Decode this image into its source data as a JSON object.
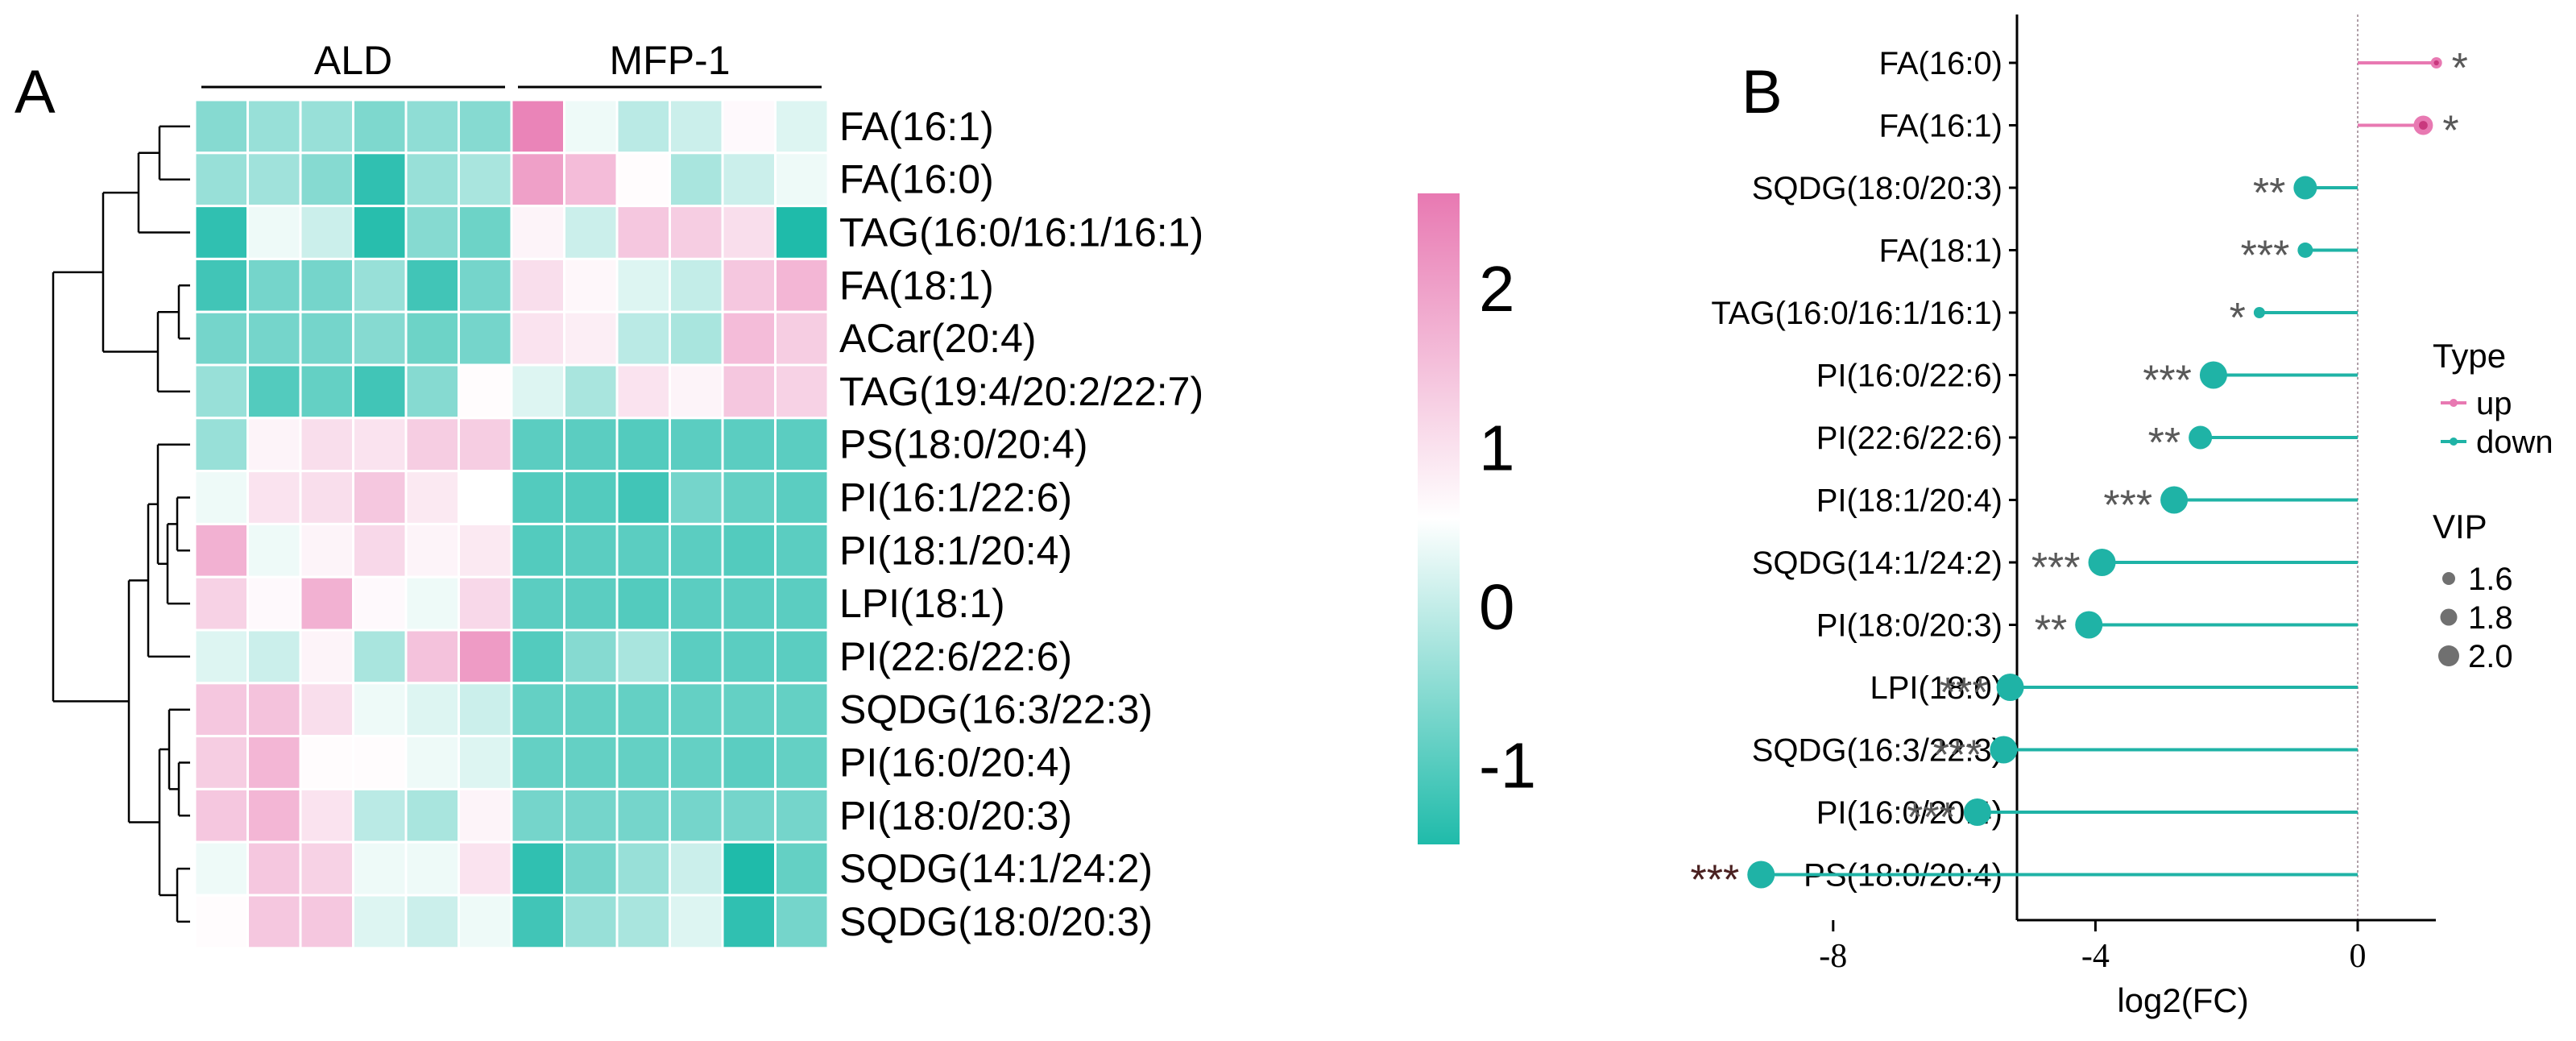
{
  "chart_data": [
    {
      "panel": "A",
      "type": "heatmap",
      "groups": [
        {
          "label": "ALD",
          "columns": 6
        },
        {
          "label": "MFP-1",
          "columns": 6
        }
      ],
      "rows": [
        "FA(16:1)",
        "FA(16:0)",
        "TAG(16:0/16:1/16:1)",
        "FA(18:1)",
        "ACar(20:4)",
        "TAG(19:4/20:2/22:7)",
        "PS(18:0/20:4)",
        "PI(16:1/22:6)",
        "PI(18:1/20:4)",
        "LPI(18:1)",
        "PI(22:6/22:6)",
        "SQDG(16:3/22:3)",
        "PI(16:0/20:4)",
        "PI(18:0/20:3)",
        "SQDG(14:1/24:2)",
        "SQDG(18:0/20:3)"
      ],
      "values": [
        [
          -0.7,
          -0.6,
          -0.6,
          -0.75,
          -0.65,
          -0.7,
          2.2,
          -0.1,
          -0.4,
          -0.3,
          0.1,
          -0.2
        ],
        [
          -0.6,
          -0.55,
          -0.7,
          -1.2,
          -0.6,
          -0.5,
          1.7,
          1.2,
          0.05,
          -0.5,
          -0.3,
          -0.1
        ],
        [
          -1.2,
          -0.1,
          -0.3,
          -1.25,
          -0.7,
          -0.85,
          0.2,
          -0.3,
          1.0,
          0.9,
          0.6,
          -1.3
        ],
        [
          -1.1,
          -0.8,
          -0.8,
          -0.6,
          -1.1,
          -0.8,
          0.6,
          0.15,
          -0.2,
          -0.35,
          1.0,
          1.3
        ],
        [
          -0.8,
          -0.8,
          -0.8,
          -0.7,
          -0.85,
          -0.8,
          0.5,
          0.3,
          -0.4,
          -0.5,
          1.2,
          0.9
        ],
        [
          -0.6,
          -1.0,
          -0.9,
          -1.1,
          -0.7,
          0.05,
          -0.2,
          -0.5,
          0.5,
          0.2,
          1.0,
          0.8
        ],
        [
          -0.6,
          0.2,
          0.6,
          0.5,
          0.9,
          0.9,
          -0.95,
          -0.95,
          -1.0,
          -0.95,
          -0.95,
          -0.95
        ],
        [
          -0.1,
          0.5,
          0.6,
          1.0,
          0.4,
          0.0,
          -1.0,
          -1.0,
          -1.1,
          -0.8,
          -0.9,
          -0.95
        ],
        [
          1.4,
          -0.1,
          0.2,
          0.7,
          0.2,
          0.4,
          -1.0,
          -0.95,
          -0.95,
          -0.95,
          -1.0,
          -0.95
        ],
        [
          0.8,
          0.1,
          1.4,
          0.1,
          -0.1,
          0.7,
          -0.95,
          -0.95,
          -1.0,
          -0.95,
          -0.95,
          -0.95
        ],
        [
          -0.2,
          -0.3,
          0.2,
          -0.5,
          1.1,
          1.8,
          -1.0,
          -0.7,
          -0.5,
          -0.95,
          -0.95,
          -0.95
        ],
        [
          1.0,
          1.1,
          0.6,
          -0.1,
          -0.2,
          -0.3,
          -0.9,
          -0.9,
          -0.9,
          -0.9,
          -0.9,
          -0.9
        ],
        [
          0.9,
          1.3,
          0.05,
          0.05,
          -0.1,
          -0.2,
          -0.9,
          -0.9,
          -0.9,
          -0.9,
          -0.95,
          -0.9
        ],
        [
          1.0,
          1.3,
          0.5,
          -0.4,
          -0.5,
          0.2,
          -0.8,
          -0.8,
          -0.8,
          -0.8,
          -0.8,
          -0.8
        ],
        [
          -0.1,
          1.0,
          0.8,
          -0.1,
          -0.1,
          0.5,
          -1.2,
          -0.8,
          -0.6,
          -0.3,
          -1.3,
          -0.9
        ],
        [
          0.05,
          1.0,
          1.0,
          -0.2,
          -0.3,
          -0.1,
          -1.1,
          -0.6,
          -0.5,
          -0.2,
          -1.2,
          -0.8
        ]
      ],
      "colorbar": {
        "min": -1.5,
        "max": 2.6,
        "ticks": [
          2,
          1,
          0,
          -1
        ],
        "colors": {
          "low": "#1fbbaa",
          "mid": "#ffffff",
          "high": "#e879b2"
        }
      }
    },
    {
      "panel": "B",
      "type": "lollipop",
      "categories": [
        "FA(16:0)",
        "FA(16:1)",
        "SQDG(18:0/20:3)",
        "FA(18:1)",
        "TAG(16:0/16:1/16:1)",
        "PI(16:0/22:6)",
        "PI(22:6/22:6)",
        "PI(18:1/20:4)",
        "SQDG(14:1/24:2)",
        "PI(18:0/20:3)",
        "LPI(18:0)",
        "SQDG(16:3/22:3)",
        "PI(16:0/20:4)",
        "PS(18:0/20:4)"
      ],
      "values": [
        1.2,
        1.0,
        -0.8,
        -0.8,
        -1.5,
        -2.2,
        -2.4,
        -2.8,
        -3.9,
        -4.1,
        -5.3,
        -5.4,
        -5.8,
        -9.1
      ],
      "vip": [
        1.6,
        1.8,
        1.9,
        1.7,
        1.6,
        2.0,
        1.9,
        2.0,
        2.0,
        2.0,
        2.0,
        2.0,
        2.0,
        2.0
      ],
      "type_labels": [
        "up",
        "up",
        "down",
        "down",
        "down",
        "down",
        "down",
        "down",
        "down",
        "down",
        "down",
        "down",
        "down",
        "down"
      ],
      "significance": [
        "*",
        "*",
        "**",
        "***",
        "*",
        "***",
        "**",
        "***",
        "***",
        "**",
        "***",
        "***",
        "***",
        "***"
      ],
      "xlabel": "log2(FC)",
      "xticks": [
        -8,
        -4,
        0
      ],
      "xlim": [
        -10.2,
        2.8
      ],
      "colors": {
        "up": "#e879b2",
        "down": "#1fb3a6",
        "stars": "#595959",
        "zero_line": "#b0a0a8"
      },
      "legend": {
        "type_title": "Type",
        "type_items": [
          "up",
          "down"
        ],
        "vip_title": "VIP",
        "vip_items": [
          "1.6",
          "1.8",
          "2.0"
        ]
      }
    }
  ],
  "panel_labels": {
    "a": "A",
    "b": "B"
  }
}
